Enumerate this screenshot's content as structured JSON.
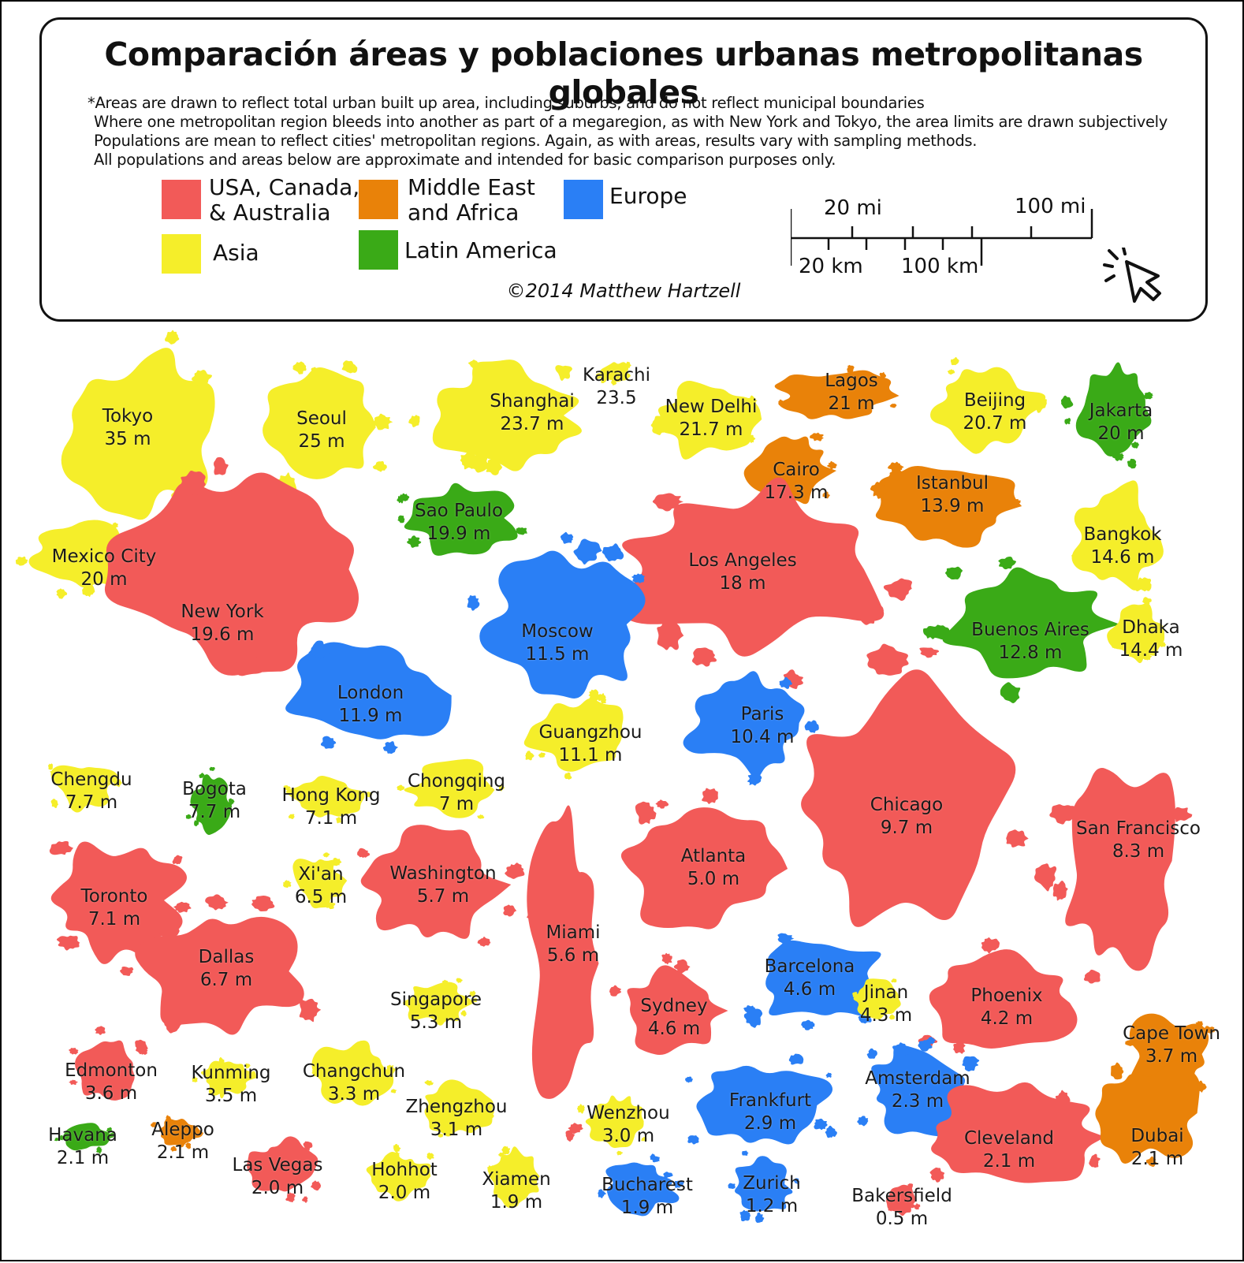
{
  "title": "Comparación áreas y poblaciones urbanas metropolitanas globales",
  "notes": [
    "*Areas are drawn to reflect total urban built up area, including suburbs, and do not reflect municipal boundaries",
    "Where one metropolitan region bleeds into another as part of a megaregion, as with New York and Tokyo, the area limits are drawn subjectively",
    "Populations are mean to reflect cities' metropolitan regions. Again, as with areas, results vary with sampling methods.",
    "All populations and areas below are approximate and intended for basic comparison purposes only."
  ],
  "legend": [
    {
      "id": "usa",
      "label_line1": "USA, Canada,",
      "label_line2": "& Australia",
      "color": "#f25a58"
    },
    {
      "id": "mideast",
      "label_line1": "Middle East",
      "label_line2": "and Africa",
      "color": "#e98209"
    },
    {
      "id": "europe",
      "label_line1": "Europe",
      "label_line2": "",
      "color": "#2a7ff5"
    },
    {
      "id": "asia",
      "label_line1": "Asia",
      "label_line2": "",
      "color": "#f5ee2a"
    },
    {
      "id": "latam",
      "label_line1": "Latin America",
      "label_line2": "",
      "color": "#3aaa17"
    }
  ],
  "scale": {
    "mi_small": "20 mi",
    "mi_large": "100 mi",
    "km_small": "20 km",
    "km_large": "100 km"
  },
  "copyright": "©2014 Matthew Hartzell",
  "cursor_icon": "click-cursor-icon",
  "cities": [
    {
      "name": "Tokyo",
      "pop": "35 m",
      "region": "asia"
    },
    {
      "name": "Seoul",
      "pop": "25 m",
      "region": "asia"
    },
    {
      "name": "Shanghai",
      "pop": "23.7 m",
      "region": "asia"
    },
    {
      "name": "Karachi",
      "pop": "23.5",
      "region": "asia"
    },
    {
      "name": "New Delhi",
      "pop": "21.7 m",
      "region": "asia"
    },
    {
      "name": "Lagos",
      "pop": "21 m",
      "region": "mideast"
    },
    {
      "name": "Beijing",
      "pop": "20.7 m",
      "region": "asia"
    },
    {
      "name": "Jakarta",
      "pop": "20 m",
      "region": "latam"
    },
    {
      "name": "Mexico City",
      "pop": "20 m",
      "region": "asia"
    },
    {
      "name": "Sao Paulo",
      "pop": "19.9 m",
      "region": "latam"
    },
    {
      "name": "Cairo",
      "pop": "17.3 m",
      "region": "mideast"
    },
    {
      "name": "Istanbul",
      "pop": "13.9 m",
      "region": "mideast"
    },
    {
      "name": "Bangkok",
      "pop": "14.6 m",
      "region": "asia"
    },
    {
      "name": "New York",
      "pop": "19.6 m",
      "region": "usa"
    },
    {
      "name": "Los Angeles",
      "pop": "18 m",
      "region": "usa"
    },
    {
      "name": "Moscow",
      "pop": "11.5 m",
      "region": "europe"
    },
    {
      "name": "Buenos Aires",
      "pop": "12.8 m",
      "region": "latam"
    },
    {
      "name": "Dhaka",
      "pop": "14.4 m",
      "region": "asia"
    },
    {
      "name": "London",
      "pop": "11.9 m",
      "region": "europe"
    },
    {
      "name": "Paris",
      "pop": "10.4 m",
      "region": "europe"
    },
    {
      "name": "Guangzhou",
      "pop": "11.1 m",
      "region": "asia"
    },
    {
      "name": "Chengdu",
      "pop": "7.7 m",
      "region": "asia"
    },
    {
      "name": "Bogota",
      "pop": "7.7 m",
      "region": "latam"
    },
    {
      "name": "Hong Kong",
      "pop": "7.1 m",
      "region": "asia"
    },
    {
      "name": "Chongqing",
      "pop": "7 m",
      "region": "asia"
    },
    {
      "name": "Chicago",
      "pop": "9.7 m",
      "region": "usa"
    },
    {
      "name": "San Francisco",
      "pop": "8.3 m",
      "region": "usa"
    },
    {
      "name": "Toronto",
      "pop": "7.1 m",
      "region": "usa"
    },
    {
      "name": "Xi'an",
      "pop": "6.5 m",
      "region": "asia"
    },
    {
      "name": "Washington",
      "pop": "5.7 m",
      "region": "usa"
    },
    {
      "name": "Atlanta",
      "pop": "5.0 m",
      "region": "usa"
    },
    {
      "name": "Miami",
      "pop": "5.6 m",
      "region": "usa"
    },
    {
      "name": "Dallas",
      "pop": "6.7 m",
      "region": "usa"
    },
    {
      "name": "Barcelona",
      "pop": "4.6 m",
      "region": "europe"
    },
    {
      "name": "Singapore",
      "pop": "5.3 m",
      "region": "asia"
    },
    {
      "name": "Sydney",
      "pop": "4.6 m",
      "region": "usa"
    },
    {
      "name": "Jinan",
      "pop": "4.3 m",
      "region": "asia"
    },
    {
      "name": "Phoenix",
      "pop": "4.2 m",
      "region": "usa"
    },
    {
      "name": "Cape Town",
      "pop": "3.7 m",
      "region": "mideast"
    },
    {
      "name": "Edmonton",
      "pop": "3.6 m",
      "region": "usa"
    },
    {
      "name": "Kunming",
      "pop": "3.5 m",
      "region": "asia"
    },
    {
      "name": "Changchun",
      "pop": "3.3 m",
      "region": "asia"
    },
    {
      "name": "Zhengzhou",
      "pop": "3.1 m",
      "region": "asia"
    },
    {
      "name": "Wenzhou",
      "pop": "3.0 m",
      "region": "asia"
    },
    {
      "name": "Frankfurt",
      "pop": "2.9 m",
      "region": "europe"
    },
    {
      "name": "Amsterdam",
      "pop": "2.3 m",
      "region": "europe"
    },
    {
      "name": "Havana",
      "pop": "2.1 m",
      "region": "latam"
    },
    {
      "name": "Aleppo",
      "pop": "2.1 m",
      "region": "mideast"
    },
    {
      "name": "Las Vegas",
      "pop": "2.0 m",
      "region": "usa"
    },
    {
      "name": "Hohhot",
      "pop": "2.0 m",
      "region": "asia"
    },
    {
      "name": "Xiamen",
      "pop": "1.9 m",
      "region": "asia"
    },
    {
      "name": "Bucharest",
      "pop": "1.9 m",
      "region": "europe"
    },
    {
      "name": "Zurich",
      "pop": "1.2 m",
      "region": "europe"
    },
    {
      "name": "Bakersfield",
      "pop": "0.5 m",
      "region": "usa"
    },
    {
      "name": "Cleveland",
      "pop": "2.1 m",
      "region": "usa"
    },
    {
      "name": "Dubai",
      "pop": "2.1 m",
      "region": "mideast"
    }
  ]
}
